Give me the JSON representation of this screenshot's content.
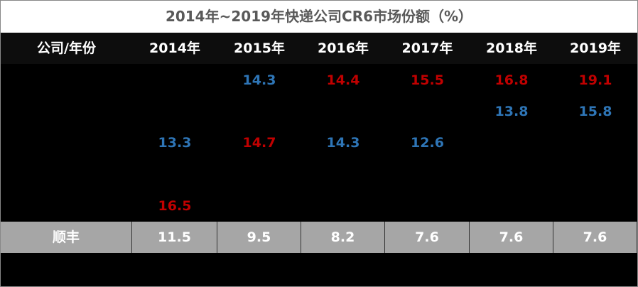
{
  "title": "2014年~2019年快递公司CR6市场份额（%）",
  "table": {
    "header": [
      "公司/年份",
      "2014年",
      "2015年",
      "2016年",
      "2017年",
      "2018年",
      "2019年"
    ],
    "rows": [
      [
        null,
        null,
        {
          "text": "14.3",
          "color": "#2e75b6"
        },
        {
          "text": "14.4",
          "color": "#c00000"
        },
        {
          "text": "15.5",
          "color": "#c00000"
        },
        {
          "text": "16.8",
          "color": "#c00000"
        },
        {
          "text": "19.1",
          "color": "#c00000"
        }
      ],
      [
        null,
        null,
        null,
        null,
        null,
        {
          "text": "13.8",
          "color": "#2e75b6"
        },
        {
          "text": "15.8",
          "color": "#2e75b6"
        }
      ],
      [
        null,
        {
          "text": "13.3",
          "color": "#2e75b6"
        },
        {
          "text": "14.7",
          "color": "#c00000"
        },
        {
          "text": "14.3",
          "color": "#2e75b6"
        },
        {
          "text": "12.6",
          "color": "#2e75b6"
        },
        null,
        null
      ],
      [
        null,
        null,
        null,
        null,
        null,
        null,
        null
      ],
      [
        null,
        {
          "text": "16.5",
          "color": "#c00000"
        },
        null,
        null,
        null,
        null,
        null
      ],
      [
        {
          "text": "顺丰",
          "color": "#ffffff"
        },
        {
          "text": "11.5",
          "color": "#ffffff"
        },
        {
          "text": "9.5",
          "color": "#ffffff"
        },
        {
          "text": "8.2",
          "color": "#ffffff"
        },
        {
          "text": "7.6",
          "color": "#ffffff"
        },
        {
          "text": "7.6",
          "color": "#ffffff"
        },
        {
          "text": "7.6",
          "color": "#ffffff"
        }
      ]
    ]
  }
}
